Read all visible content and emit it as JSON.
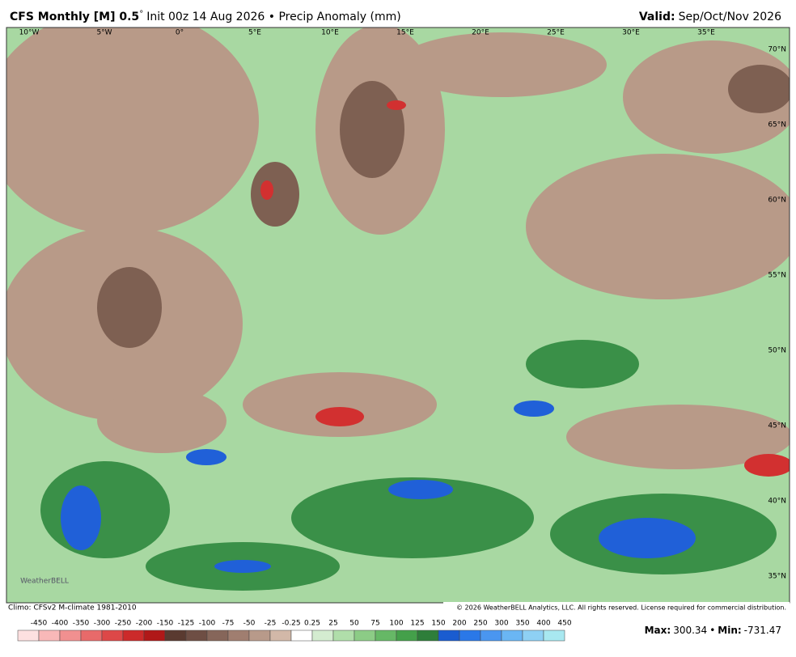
{
  "header": {
    "title_bold": "CFS Monthly [M] 0.5",
    "title_degree": "°",
    "title_rest": "Init 00z 14 Aug 2026 • Precip Anomaly (mm)",
    "valid_label": "Valid:",
    "valid_value": "Sep/Oct/Nov 2026"
  },
  "map": {
    "lon_labels": [
      "10°W",
      "5°W",
      "0°",
      "5°E",
      "10°E",
      "15°E",
      "20°E",
      "25°E",
      "30°E",
      "35°E"
    ],
    "lat_labels": [
      "70°N",
      "65°N",
      "60°N",
      "55°N",
      "50°N",
      "45°N",
      "40°N",
      "35°N"
    ],
    "logo": "WeatherBELL"
  },
  "footer": {
    "climo": "Climo: CFSv2 M-climate 1981-2010",
    "copyright": "© 2026 WeatherBELL Analytics, LLC. All rights reserved. License required for commercial distribution."
  },
  "colorbar": {
    "labels": [
      "-450",
      "-400",
      "-350",
      "-300",
      "-250",
      "-200",
      "-150",
      "-125",
      "-100",
      "-75",
      "-50",
      "-25",
      "-0.25",
      "0.25",
      "25",
      "50",
      "75",
      "100",
      "125",
      "150",
      "200",
      "250",
      "300",
      "350",
      "400",
      "450"
    ],
    "colors": [
      "#fde0e0",
      "#f8b8b8",
      "#f19090",
      "#e86a6a",
      "#dd4848",
      "#cc2a2a",
      "#b01818",
      "#5a3a30",
      "#6e4e44",
      "#86665a",
      "#a07e70",
      "#b89a8a",
      "#d2b8a8",
      "#ffffff",
      "#d4ecd0",
      "#b0deaa",
      "#8ccc86",
      "#66b866",
      "#44a04a",
      "#2e7e3a",
      "#1a5cd0",
      "#2a78e8",
      "#4a96f0",
      "#6ab6f4",
      "#8ed0f4",
      "#a8e8f0"
    ]
  },
  "stats": {
    "max_label": "Max:",
    "max": "300.34",
    "separator": "•",
    "min_label": "Min:",
    "min": "-731.47"
  }
}
